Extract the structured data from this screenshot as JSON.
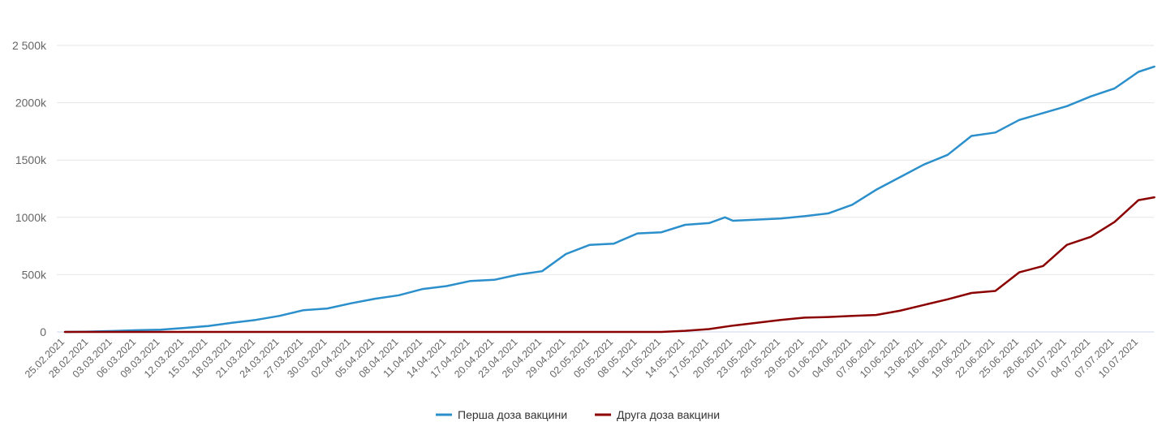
{
  "chart_data": {
    "type": "line",
    "title": "",
    "xlabel": "",
    "ylabel": "",
    "ylim": [
      0,
      2500000
    ],
    "y_ticks": [
      {
        "value": 0,
        "label": "0"
      },
      {
        "value": 500000,
        "label": "500k"
      },
      {
        "value": 1000000,
        "label": "1000k"
      },
      {
        "value": 1500000,
        "label": "1500k"
      },
      {
        "value": 2000000,
        "label": "2000k"
      },
      {
        "value": 2500000,
        "label": "2 500k"
      }
    ],
    "x_tick_labels": [
      "25.02.2021",
      "28.02.2021",
      "03.03.2021",
      "06.03.2021",
      "09.03.2021",
      "12.03.2021",
      "15.03.2021",
      "18.03.2021",
      "21.03.2021",
      "24.03.2021",
      "27.03.2021",
      "30.03.2021",
      "02.04.2021",
      "05.04.2021",
      "08.04.2021",
      "11.04.2021",
      "14.04.2021",
      "17.04.2021",
      "20.04.2021",
      "23.04.2021",
      "26.04.2021",
      "29.04.2021",
      "02.05.2021",
      "05.05.2021",
      "08.05.2021",
      "11.05.2021",
      "14.05.2021",
      "17.05.2021",
      "20.05.2021",
      "23.05.2021",
      "26.05.2021",
      "29.05.2021",
      "01.06.2021",
      "04.06.2021",
      "07.06.2021",
      "10.06.2021",
      "13.06.2021",
      "16.06.2021",
      "19.06.2021",
      "22.06.2021",
      "25.06.2021",
      "28.06.2021",
      "01.07.2021",
      "04.07.2021",
      "07.07.2021",
      "10.07.2021"
    ],
    "grid": true,
    "legend_position": "bottom-center",
    "series": [
      {
        "name": "Перша доза вакцини",
        "color": "#2b8fcb",
        "points": [
          [
            "25.02.2021",
            0
          ],
          [
            "28.02.2021",
            3000
          ],
          [
            "03.03.2021",
            8000
          ],
          [
            "06.03.2021",
            15000
          ],
          [
            "09.03.2021",
            20000
          ],
          [
            "12.03.2021",
            35000
          ],
          [
            "15.03.2021",
            52000
          ],
          [
            "18.03.2021",
            80000
          ],
          [
            "21.03.2021",
            105000
          ],
          [
            "24.03.2021",
            140000
          ],
          [
            "27.03.2021",
            190000
          ],
          [
            "30.03.2021",
            205000
          ],
          [
            "02.04.2021",
            250000
          ],
          [
            "05.04.2021",
            290000
          ],
          [
            "08.04.2021",
            320000
          ],
          [
            "11.04.2021",
            375000
          ],
          [
            "14.04.2021",
            400000
          ],
          [
            "17.04.2021",
            445000
          ],
          [
            "20.04.2021",
            455000
          ],
          [
            "23.04.2021",
            500000
          ],
          [
            "26.04.2021",
            530000
          ],
          [
            "29.04.2021",
            680000
          ],
          [
            "02.05.2021",
            760000
          ],
          [
            "05.05.2021",
            770000
          ],
          [
            "08.05.2021",
            860000
          ],
          [
            "11.05.2021",
            870000
          ],
          [
            "14.05.2021",
            935000
          ],
          [
            "17.05.2021",
            950000
          ],
          [
            "19.05.2021",
            1000000
          ],
          [
            "20.05.2021",
            970000
          ],
          [
            "23.05.2021",
            980000
          ],
          [
            "26.05.2021",
            990000
          ],
          [
            "29.05.2021",
            1010000
          ],
          [
            "01.06.2021",
            1035000
          ],
          [
            "04.06.2021",
            1110000
          ],
          [
            "07.06.2021",
            1240000
          ],
          [
            "10.06.2021",
            1350000
          ],
          [
            "13.06.2021",
            1460000
          ],
          [
            "16.06.2021",
            1545000
          ],
          [
            "19.06.2021",
            1710000
          ],
          [
            "22.06.2021",
            1740000
          ],
          [
            "25.06.2021",
            1850000
          ],
          [
            "28.06.2021",
            1910000
          ],
          [
            "01.07.2021",
            1970000
          ],
          [
            "04.07.2021",
            2055000
          ],
          [
            "07.07.2021",
            2125000
          ],
          [
            "10.07.2021",
            2270000
          ],
          [
            "12.07.2021",
            2315000
          ]
        ]
      },
      {
        "name": "Друга доза вакцини",
        "color": "#8b0000",
        "points": [
          [
            "25.02.2021",
            0
          ],
          [
            "11.05.2021",
            0
          ],
          [
            "14.05.2021",
            10000
          ],
          [
            "17.05.2021",
            25000
          ],
          [
            "20.05.2021",
            55000
          ],
          [
            "23.05.2021",
            80000
          ],
          [
            "26.05.2021",
            105000
          ],
          [
            "29.05.2021",
            125000
          ],
          [
            "01.06.2021",
            130000
          ],
          [
            "04.06.2021",
            140000
          ],
          [
            "07.06.2021",
            148000
          ],
          [
            "10.06.2021",
            185000
          ],
          [
            "13.06.2021",
            235000
          ],
          [
            "16.06.2021",
            285000
          ],
          [
            "19.06.2021",
            340000
          ],
          [
            "22.06.2021",
            358000
          ],
          [
            "25.06.2021",
            520000
          ],
          [
            "28.06.2021",
            575000
          ],
          [
            "01.07.2021",
            760000
          ],
          [
            "04.07.2021",
            830000
          ],
          [
            "07.07.2021",
            960000
          ],
          [
            "10.07.2021",
            1150000
          ],
          [
            "12.07.2021",
            1175000
          ]
        ]
      }
    ]
  }
}
